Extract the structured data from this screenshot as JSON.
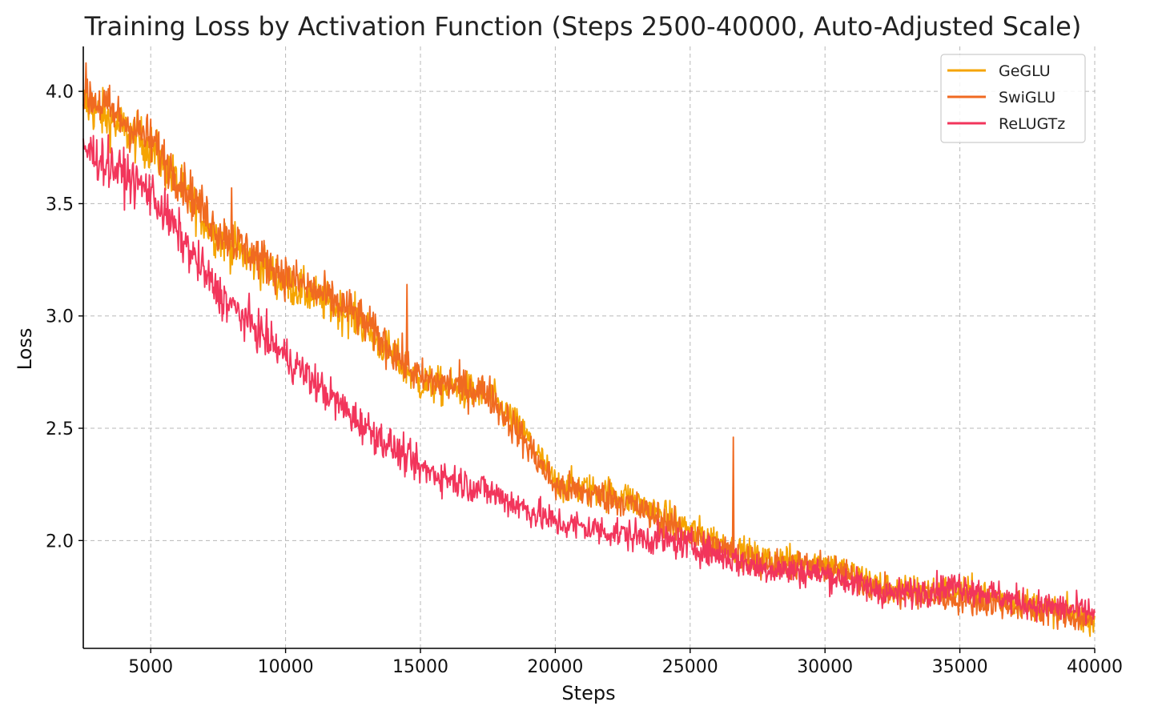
{
  "chart_data": {
    "type": "line",
    "title": "Training Loss by Activation Function (Steps 2500-40000, Auto-Adjusted Scale)",
    "xlabel": "Steps",
    "ylabel": "Loss",
    "xlim": [
      2500,
      40000
    ],
    "ylim": [
      1.52,
      4.2
    ],
    "xticks": [
      5000,
      10000,
      15000,
      20000,
      25000,
      30000,
      35000,
      40000
    ],
    "xtick_labels": [
      "5000",
      "10000",
      "15000",
      "20000",
      "25000",
      "30000",
      "35000",
      "40000"
    ],
    "yticks": [
      2.0,
      2.5,
      3.0,
      3.5,
      4.0
    ],
    "ytick_labels": [
      "2.0",
      "2.5",
      "3.0",
      "3.5",
      "4.0"
    ],
    "grid": true,
    "legend_position": "top-right",
    "series": [
      {
        "name": "GeGLU",
        "color": "#F5A400",
        "x": [
          2500,
          5000,
          7500,
          10000,
          12500,
          15000,
          17500,
          19000,
          20000,
          22500,
          25000,
          27500,
          30000,
          32500,
          35000,
          37500,
          40000
        ],
        "y": [
          3.95,
          3.75,
          3.35,
          3.15,
          3.0,
          2.7,
          2.65,
          2.45,
          2.25,
          2.2,
          2.05,
          1.92,
          1.9,
          1.78,
          1.78,
          1.72,
          1.65
        ],
        "spikes": []
      },
      {
        "name": "SwiGLU",
        "color": "#F06A21",
        "x": [
          2500,
          5000,
          7500,
          10000,
          12500,
          15000,
          17500,
          19000,
          20000,
          22500,
          25000,
          27500,
          30000,
          32500,
          35000,
          37500,
          40000
        ],
        "y": [
          4.0,
          3.78,
          3.38,
          3.18,
          3.02,
          2.72,
          2.66,
          2.42,
          2.24,
          2.18,
          2.02,
          1.9,
          1.88,
          1.76,
          1.74,
          1.7,
          1.64
        ],
        "spikes": [
          [
            8000,
            3.57
          ],
          [
            14500,
            3.14
          ],
          [
            26600,
            2.46
          ]
        ]
      },
      {
        "name": "ReLUGTz",
        "color": "#F2355B",
        "x": [
          2500,
          5000,
          7500,
          10000,
          12500,
          15000,
          17500,
          20000,
          22500,
          25000,
          27500,
          30000,
          32500,
          35000,
          37500,
          40000
        ],
        "y": [
          3.75,
          3.55,
          3.1,
          2.82,
          2.55,
          2.32,
          2.22,
          2.08,
          2.03,
          1.98,
          1.88,
          1.85,
          1.76,
          1.8,
          1.72,
          1.68
        ],
        "spikes": []
      }
    ]
  }
}
